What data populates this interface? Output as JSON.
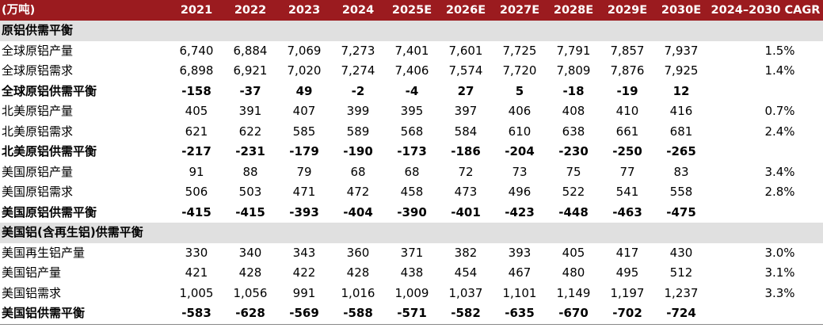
{
  "header": {
    "label": "(万吨)",
    "years": [
      "2021",
      "2022",
      "2023",
      "2024",
      "2025E",
      "2026E",
      "2027E",
      "2028E",
      "2029E",
      "2030E"
    ],
    "cagr": "2024–2030 CAGR"
  },
  "sections": [
    {
      "title": "原铝供需平衡",
      "rows": [
        {
          "label": "全球原铝产量",
          "values": [
            "6,740",
            "6,884",
            "7,069",
            "7,273",
            "7,401",
            "7,601",
            "7,725",
            "7,791",
            "7,857",
            "7,937"
          ],
          "cagr": "1.5%"
        },
        {
          "label": "全球原铝需求",
          "values": [
            "6,898",
            "6,921",
            "7,020",
            "7,274",
            "7,406",
            "7,574",
            "7,720",
            "7,809",
            "7,876",
            "7,925"
          ],
          "cagr": "1.4%"
        },
        {
          "label": "全球原铝供需平衡",
          "values": [
            "-158",
            "-37",
            "49",
            "-2",
            "-4",
            "27",
            "5",
            "-18",
            "-19",
            "12"
          ],
          "cagr": "",
          "bold": true
        },
        {
          "label": "北美原铝产量",
          "values": [
            "405",
            "391",
            "407",
            "399",
            "395",
            "397",
            "406",
            "408",
            "410",
            "416"
          ],
          "cagr": "0.7%"
        },
        {
          "label": "北美原铝需求",
          "values": [
            "621",
            "622",
            "585",
            "589",
            "568",
            "584",
            "610",
            "638",
            "661",
            "681"
          ],
          "cagr": "2.4%"
        },
        {
          "label": "北美原铝供需平衡",
          "values": [
            "-217",
            "-231",
            "-179",
            "-190",
            "-173",
            "-186",
            "-204",
            "-230",
            "-250",
            "-265"
          ],
          "cagr": "",
          "bold": true
        },
        {
          "label": "美国原铝产量",
          "values": [
            "91",
            "88",
            "79",
            "68",
            "68",
            "72",
            "73",
            "75",
            "77",
            "83"
          ],
          "cagr": "3.4%"
        },
        {
          "label": "美国原铝需求",
          "values": [
            "506",
            "503",
            "471",
            "472",
            "458",
            "473",
            "496",
            "522",
            "541",
            "558"
          ],
          "cagr": "2.8%"
        },
        {
          "label": "美国原铝供需平衡",
          "values": [
            "-415",
            "-415",
            "-393",
            "-404",
            "-390",
            "-401",
            "-423",
            "-448",
            "-463",
            "-475"
          ],
          "cagr": "",
          "bold": true
        }
      ]
    },
    {
      "title": "美国铝(含再生铝)供需平衡",
      "rows": [
        {
          "label": "美国再生铝产量",
          "values": [
            "330",
            "340",
            "343",
            "360",
            "371",
            "382",
            "393",
            "405",
            "417",
            "430"
          ],
          "cagr": "3.0%"
        },
        {
          "label": "美国铝产量",
          "values": [
            "421",
            "428",
            "422",
            "428",
            "438",
            "454",
            "467",
            "480",
            "495",
            "512"
          ],
          "cagr": "3.1%"
        },
        {
          "label": "美国铝需求",
          "values": [
            "1,005",
            "1,056",
            "991",
            "1,016",
            "1,009",
            "1,037",
            "1,101",
            "1,149",
            "1,197",
            "1,237"
          ],
          "cagr": "3.3%"
        },
        {
          "label": "美国铝供需平衡",
          "values": [
            "-583",
            "-628",
            "-569",
            "-588",
            "-571",
            "-582",
            "-635",
            "-670",
            "-702",
            "-724"
          ],
          "cagr": "",
          "bold": true
        }
      ]
    }
  ]
}
